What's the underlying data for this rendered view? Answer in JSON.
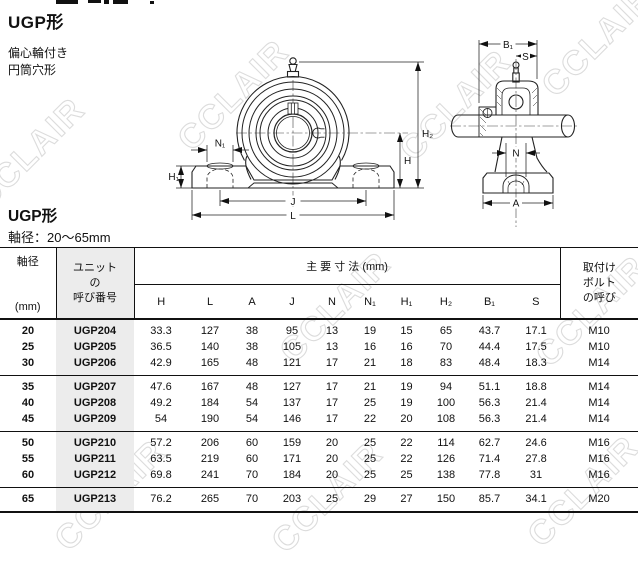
{
  "watermark": {
    "text": "CCLAIR",
    "color": "#dcdcdc"
  },
  "page": {
    "title": "UGP形",
    "subtitle_line1": "偏心輪付き",
    "subtitle_line2": "円筒穴形",
    "section_title": "UGP形",
    "shaft_range_label": "軸径：20～65mm"
  },
  "diagrams": {
    "front": {
      "labels": {
        "n1": "N₁",
        "h1": "H₁",
        "h": "H",
        "h2": "H₂",
        "j": "J",
        "l": "L"
      }
    },
    "side": {
      "labels": {
        "b1": "B₁",
        "s": "S",
        "n": "N",
        "a": "A"
      }
    }
  },
  "table": {
    "header": {
      "col_shaft": [
        "軸径",
        "(mm)"
      ],
      "col_unit": [
        "ユニット",
        "の",
        "呼び番号"
      ],
      "dims_title": "主 要 寸 法 (mm)",
      "dim_columns": [
        "H",
        "L",
        "A",
        "J",
        "N",
        "N₁",
        "H₁",
        "H₂",
        "B₁",
        "S"
      ],
      "col_bolt": [
        "取付け",
        "ボルト",
        "の呼び"
      ]
    },
    "groups": [
      {
        "rows": [
          {
            "shaft": "20",
            "unit": "UGP204",
            "dims": [
              "33.3",
              "127",
              "38",
              "95",
              "13",
              "19",
              "15",
              "65",
              "43.7",
              "17.1"
            ],
            "bolt": "M10"
          },
          {
            "shaft": "25",
            "unit": "UGP205",
            "dims": [
              "36.5",
              "140",
              "38",
              "105",
              "13",
              "16",
              "16",
              "70",
              "44.4",
              "17.5"
            ],
            "bolt": "M10"
          },
          {
            "shaft": "30",
            "unit": "UGP206",
            "dims": [
              "42.9",
              "165",
              "48",
              "121",
              "17",
              "21",
              "18",
              "83",
              "48.4",
              "18.3"
            ],
            "bolt": "M14"
          }
        ]
      },
      {
        "rows": [
          {
            "shaft": "35",
            "unit": "UGP207",
            "dims": [
              "47.6",
              "167",
              "48",
              "127",
              "17",
              "21",
              "19",
              "94",
              "51.1",
              "18.8"
            ],
            "bolt": "M14"
          },
          {
            "shaft": "40",
            "unit": "UGP208",
            "dims": [
              "49.2",
              "184",
              "54",
              "137",
              "17",
              "25",
              "19",
              "100",
              "56.3",
              "21.4"
            ],
            "bolt": "M14"
          },
          {
            "shaft": "45",
            "unit": "UGP209",
            "dims": [
              "54",
              "190",
              "54",
              "146",
              "17",
              "22",
              "20",
              "108",
              "56.3",
              "21.4"
            ],
            "bolt": "M14"
          }
        ]
      },
      {
        "rows": [
          {
            "shaft": "50",
            "unit": "UGP210",
            "dims": [
              "57.2",
              "206",
              "60",
              "159",
              "20",
              "25",
              "22",
              "114",
              "62.7",
              "24.6"
            ],
            "bolt": "M16"
          },
          {
            "shaft": "55",
            "unit": "UGP211",
            "dims": [
              "63.5",
              "219",
              "60",
              "171",
              "20",
              "25",
              "22",
              "126",
              "71.4",
              "27.8"
            ],
            "bolt": "M16"
          },
          {
            "shaft": "60",
            "unit": "UGP212",
            "dims": [
              "69.8",
              "241",
              "70",
              "184",
              "20",
              "25",
              "25",
              "138",
              "77.8",
              "31"
            ],
            "bolt": "M16"
          }
        ]
      },
      {
        "rows": [
          {
            "shaft": "65",
            "unit": "UGP213",
            "dims": [
              "76.2",
              "265",
              "70",
              "203",
              "25",
              "29",
              "27",
              "150",
              "85.7",
              "34.1"
            ],
            "bolt": "M20"
          }
        ]
      }
    ]
  }
}
